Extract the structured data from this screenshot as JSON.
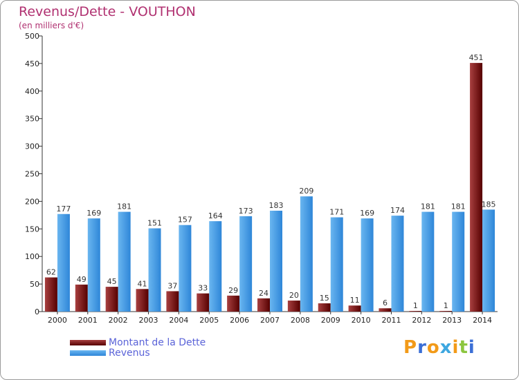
{
  "chart_data": {
    "type": "bar",
    "title": "Revenus/Dette - VOUTHON",
    "subtitle": "(en milliers d'€)",
    "categories": [
      "2000",
      "2001",
      "2002",
      "2003",
      "2004",
      "2005",
      "2006",
      "2007",
      "2008",
      "2009",
      "2010",
      "2011",
      "2012",
      "2013",
      "2014"
    ],
    "series": [
      {
        "name": "Montant de la Dette",
        "color": "#7a1414",
        "values": [
          62,
          49,
          45,
          41,
          37,
          33,
          29,
          24,
          20,
          15,
          11,
          6,
          1,
          1,
          451
        ]
      },
      {
        "name": "Revenus",
        "color": "#4aa0e6",
        "values": [
          177,
          169,
          181,
          151,
          157,
          164,
          173,
          183,
          209,
          171,
          169,
          174,
          181,
          181,
          185
        ]
      }
    ],
    "ylim": [
      0,
      500
    ],
    "yticks": [
      0,
      50,
      100,
      150,
      200,
      250,
      300,
      350,
      400,
      450,
      500
    ],
    "grid": false,
    "legend_position": "bottom-left"
  },
  "logo": {
    "text": "Proxiti",
    "colors": [
      "#f29a18",
      "#3b6fd6",
      "#f29a18",
      "#3ea7e0",
      "#f29a18",
      "#8cc63f",
      "#3b6fd6"
    ]
  }
}
